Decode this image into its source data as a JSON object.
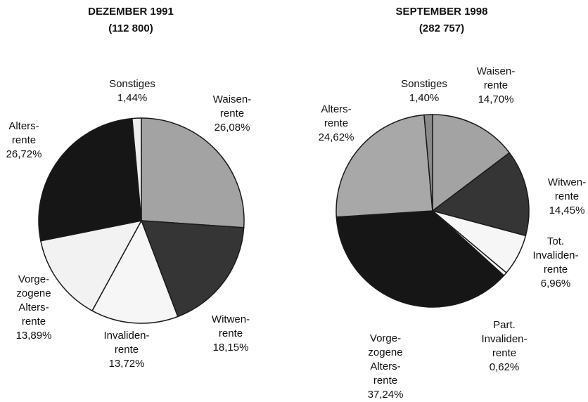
{
  "chart_data": [
    {
      "type": "pie",
      "title": "DEZEMBER 1991",
      "subtitle": "(112 800)",
      "categories": [
        "Waisen-\nrente",
        "Witwen-\nrente",
        "Invaliden-\nrente",
        "Vorge-\nzogene\nAlters-\nrente",
        "Alters-\nrente",
        "Sonstiges"
      ],
      "values": [
        26.08,
        18.15,
        13.72,
        13.89,
        26.72,
        1.44
      ],
      "value_labels": [
        "26,08%",
        "18,15%",
        "13,72%",
        "13,89%",
        "26,72%",
        "1,44%"
      ],
      "colors": [
        "#a3a3a3",
        "#353535",
        "#f6f6f6",
        "#f2f2f2",
        "#161616",
        "#eeeeee"
      ]
    },
    {
      "type": "pie",
      "title": "SEPTEMBER 1998",
      "subtitle": "(282 757)",
      "categories": [
        "Waisen-\nrente",
        "Witwen-\nrente",
        "Tot.\nInvaliden-\nrente",
        "Part.\nInvaliden-\nrente",
        "Vorge-\nzogene\nAlters-\nrente",
        "Alters-\nrente",
        "Sonstiges"
      ],
      "values": [
        14.7,
        14.45,
        6.96,
        0.62,
        37.24,
        24.62,
        1.4
      ],
      "value_labels": [
        "14,70%",
        "14,45%",
        "6,96%",
        "0,62%",
        "37,24%",
        "24,62%",
        "1,40%"
      ],
      "colors": [
        "#a3a3a3",
        "#353535",
        "#f6f6f6",
        "#f2f2f2",
        "#161616",
        "#a8a8a8",
        "#8a8a8a"
      ]
    }
  ]
}
